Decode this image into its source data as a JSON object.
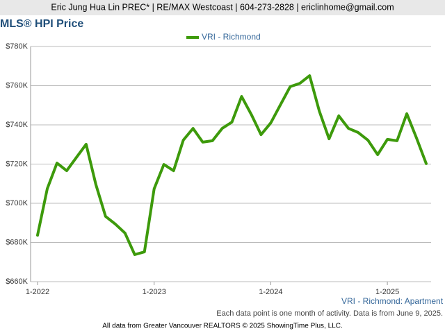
{
  "header": "Eric Jung Hua Lin PREC* | RE/MAX Westcoast | 604-273-2828 | ericlinhome@gmail.com",
  "chart_data": {
    "type": "line",
    "title": "MLS® HPI Price",
    "categories": [
      "1-2022",
      null,
      null,
      null,
      null,
      null,
      null,
      null,
      null,
      null,
      null,
      null,
      "1-2023",
      null,
      null,
      null,
      null,
      null,
      null,
      null,
      null,
      null,
      null,
      null,
      "1-2024",
      null,
      null,
      null,
      null,
      null,
      null,
      null,
      null,
      null,
      null,
      null,
      "1-2025",
      null,
      null,
      null,
      null
    ],
    "series": [
      {
        "name": "VRI - Richmond",
        "color": "#3d9a0b",
        "values": [
          683700,
          707400,
          720500,
          716600,
          723400,
          730100,
          709600,
          693300,
          689400,
          684800,
          673800,
          675200,
          707400,
          719800,
          716600,
          732200,
          738200,
          731200,
          731900,
          738200,
          741400,
          754500,
          745300,
          735000,
          741000,
          750300,
          759500,
          761200,
          765100,
          747000,
          732900,
          744600,
          738200,
          736100,
          732200,
          724800,
          732600,
          731900,
          745700,
          733300,
          720200
        ]
      }
    ],
    "ylim": [
      660000,
      780000
    ],
    "yticks": [
      {
        "value": 660000,
        "label": "$660K"
      },
      {
        "value": 680000,
        "label": "$680K"
      },
      {
        "value": 700000,
        "label": "$700K"
      },
      {
        "value": 720000,
        "label": "$720K"
      },
      {
        "value": 740000,
        "label": "$740K"
      },
      {
        "value": 760000,
        "label": "$760K"
      },
      {
        "value": 780000,
        "label": "$780K"
      }
    ],
    "grid": true,
    "legend": "top",
    "series_label": "VRI - Richmond: Apartment",
    "note": "Each data point is one month of activity. Data is from June 9, 2025."
  },
  "footer": "All data from Greater Vancouver REALTORS © 2025 ShowingTime Plus, LLC."
}
